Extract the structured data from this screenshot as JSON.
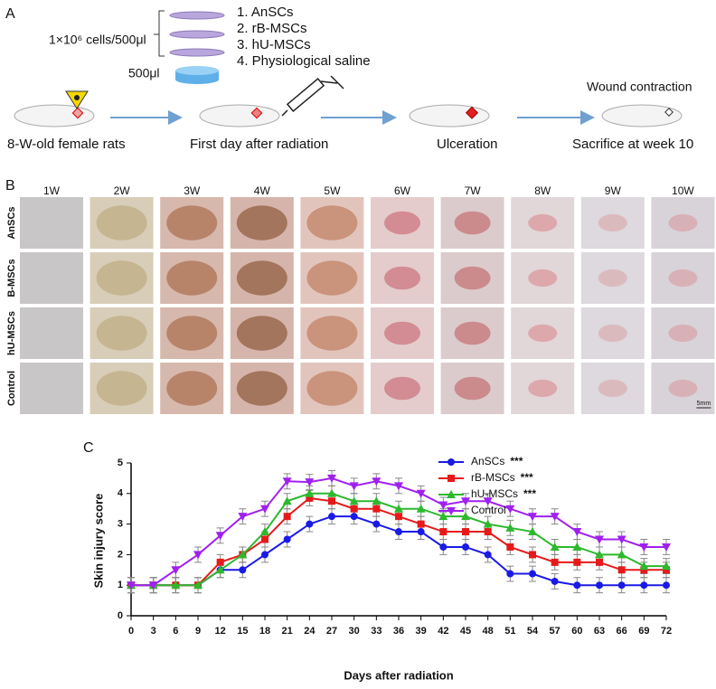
{
  "panel_a": {
    "label": "A",
    "treatments": [
      "1. AnSCs",
      "2. rB-MSCs",
      "3. hU-MSCs",
      "4. Physiological saline"
    ],
    "cell_dose": "1×10⁶ cells/500μl",
    "volume": "500μl",
    "steps": [
      "8-W-old female rats",
      "First day after radiation",
      "Ulceration",
      "Sacrifice at week 10"
    ],
    "step_note": "Wound contraction"
  },
  "panel_b": {
    "label": "B",
    "columns": [
      "1W",
      "2W",
      "3W",
      "4W",
      "5W",
      "6W",
      "7W",
      "8W",
      "9W",
      "10W"
    ],
    "rows": [
      "AnSCs",
      "B-MSCs",
      "hU-MSCs",
      "Control"
    ],
    "scale_bar": "5mm"
  },
  "chart_data": {
    "type": "line",
    "panel_label": "C",
    "x_label": "Days after radiation",
    "y_label": "Skin injury score",
    "x": [
      0,
      3,
      6,
      9,
      12,
      15,
      18,
      21,
      24,
      27,
      30,
      33,
      36,
      39,
      42,
      45,
      48,
      51,
      54,
      57,
      60,
      63,
      66,
      69,
      72
    ],
    "xlim": [
      0,
      72
    ],
    "xticks": [
      0,
      3,
      6,
      9,
      12,
      15,
      18,
      21,
      24,
      27,
      30,
      33,
      36,
      39,
      42,
      45,
      48,
      51,
      54,
      57,
      60,
      63,
      66,
      69,
      72
    ],
    "ylim": [
      0,
      5
    ],
    "yticks": [
      0,
      1,
      2,
      3,
      4,
      5
    ],
    "series": [
      {
        "name": "AnSCs",
        "significance": "***",
        "color": "#1a1ae6",
        "marker": "circle",
        "values": [
          1,
          1,
          1,
          1,
          1.5,
          1.5,
          2,
          2.5,
          3,
          3.25,
          3.25,
          3,
          2.75,
          2.75,
          2.25,
          2.25,
          2,
          1.375,
          1.375,
          1.125,
          1,
          1,
          1,
          1,
          1
        ],
        "errors": [
          0.25,
          0.25,
          0.25,
          0.25,
          0.25,
          0.25,
          0.25,
          0.25,
          0.25,
          0.25,
          0.25,
          0.25,
          0.25,
          0.25,
          0.25,
          0.25,
          0.25,
          0.25,
          0.25,
          0.25,
          0.25,
          0.25,
          0.25,
          0.25,
          0.25
        ]
      },
      {
        "name": "rB-MSCs",
        "significance": "***",
        "color": "#e61a1a",
        "marker": "square",
        "values": [
          1,
          1,
          1,
          1,
          1.75,
          2,
          2.5,
          3.25,
          3.85,
          3.75,
          3.5,
          3.5,
          3.25,
          3,
          2.75,
          2.75,
          2.75,
          2.25,
          2,
          1.75,
          1.75,
          1.75,
          1.5,
          1.5,
          1.5
        ],
        "errors": [
          0.25,
          0.25,
          0.25,
          0.25,
          0.25,
          0.25,
          0.25,
          0.25,
          0.25,
          0.25,
          0.25,
          0.25,
          0.25,
          0.25,
          0.25,
          0.25,
          0.25,
          0.25,
          0.25,
          0.25,
          0.25,
          0.25,
          0.25,
          0.25,
          0.25
        ]
      },
      {
        "name": "hU-MSCs",
        "significance": "***",
        "color": "#2eb82e",
        "marker": "triangle",
        "values": [
          1,
          1,
          1,
          1,
          1.5,
          2,
          2.75,
          3.75,
          4,
          4,
          3.75,
          3.75,
          3.5,
          3.5,
          3.25,
          3.25,
          3,
          2.875,
          2.75,
          2.25,
          2.25,
          2,
          2,
          1.625,
          1.625
        ],
        "errors": [
          0.25,
          0.25,
          0.25,
          0.25,
          0.25,
          0.25,
          0.25,
          0.25,
          0.25,
          0.25,
          0.25,
          0.25,
          0.25,
          0.25,
          0.25,
          0.25,
          0.25,
          0.25,
          0.25,
          0.25,
          0.25,
          0.25,
          0.25,
          0.25,
          0.25
        ]
      },
      {
        "name": "Control",
        "color": "#a020f0",
        "marker": "down-triangle",
        "values": [
          1,
          1,
          1.5,
          2,
          2.625,
          3.25,
          3.5,
          4.4,
          4.375,
          4.5,
          4.25,
          4.4,
          4.25,
          4,
          3.625,
          3.75,
          3.75,
          3.5,
          3.25,
          3.25,
          2.75,
          2.5,
          2.5,
          2.25,
          2.25
        ],
        "errors": [
          0.25,
          0.25,
          0.25,
          0.25,
          0.25,
          0.25,
          0.25,
          0.25,
          0.25,
          0.25,
          0.25,
          0.25,
          0.25,
          0.25,
          0.25,
          0.25,
          0.25,
          0.25,
          0.25,
          0.25,
          0.25,
          0.25,
          0.25,
          0.25,
          0.25
        ]
      }
    ]
  }
}
